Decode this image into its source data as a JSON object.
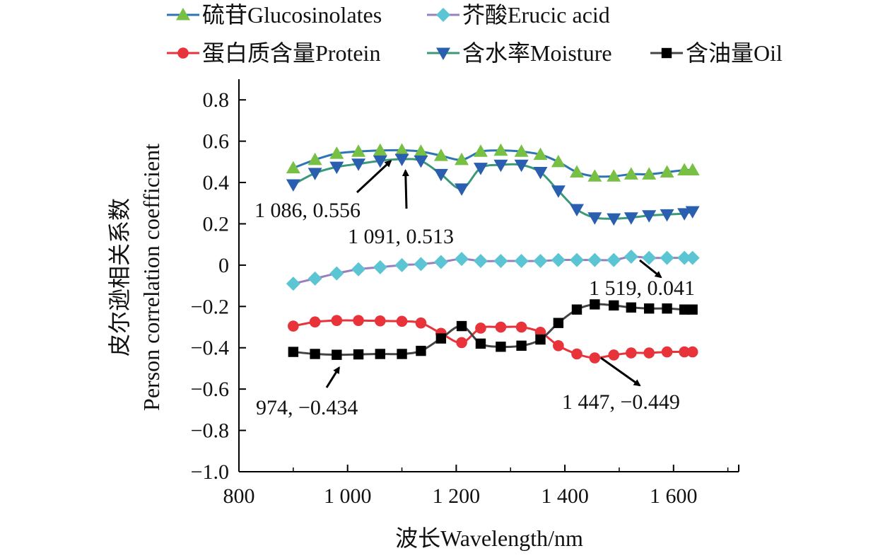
{
  "chart_data": {
    "type": "line",
    "xlabel": "波长Wavelength/nm",
    "ylabel_cn": "皮尔逊相关系数",
    "ylabel_en": "Person correlation coefficient",
    "xlim": [
      800,
      1720
    ],
    "ylim": [
      -1.0,
      0.9
    ],
    "x_ticks": [
      800,
      1000,
      1200,
      1400,
      1600
    ],
    "x_tick_labels": [
      "800",
      "1 000",
      "1 200",
      "1 400",
      "1 600"
    ],
    "y_ticks": [
      0.8,
      0.6,
      0.4,
      0.2,
      0,
      -0.2,
      -0.4,
      -0.6,
      -0.8,
      -1.0
    ],
    "y_tick_labels": [
      "0.8",
      "0.6",
      "0.4",
      "0.2",
      "0",
      "−0.2",
      "−0.4",
      "−0.6",
      "−0.8",
      "−1.0"
    ],
    "grid": false,
    "legend_position": "top",
    "x": [
      900,
      940,
      980,
      1020,
      1060,
      1100,
      1135,
      1172,
      1210,
      1245,
      1282,
      1320,
      1355,
      1388,
      1422,
      1455,
      1490,
      1522,
      1555,
      1588,
      1620,
      1635
    ],
    "series": [
      {
        "name": "硫苷Glucosinolates",
        "line_color": "#2e75b6",
        "marker_color": "#77c043",
        "marker": "triangle-up",
        "values": [
          0.47,
          0.51,
          0.54,
          0.55,
          0.555,
          0.556,
          0.55,
          0.53,
          0.51,
          0.55,
          0.555,
          0.55,
          0.535,
          0.5,
          0.45,
          0.43,
          0.43,
          0.44,
          0.44,
          0.45,
          0.46,
          0.46
        ]
      },
      {
        "name": "芥酸Erucic acid",
        "line_color": "#9a7fc0",
        "marker_color": "#5bc5d4",
        "marker": "diamond",
        "values": [
          -0.09,
          -0.065,
          -0.04,
          -0.02,
          -0.01,
          0.0,
          0.005,
          0.015,
          0.03,
          0.02,
          0.02,
          0.02,
          0.02,
          0.025,
          0.025,
          0.025,
          0.025,
          0.041,
          0.035,
          0.035,
          0.035,
          0.035
        ]
      },
      {
        "name": "蛋白质含量Protein",
        "line_color": "#e8333a",
        "marker_color": "#e8333a",
        "marker": "circle",
        "values": [
          -0.295,
          -0.275,
          -0.268,
          -0.268,
          -0.27,
          -0.272,
          -0.28,
          -0.33,
          -0.375,
          -0.305,
          -0.3,
          -0.3,
          -0.325,
          -0.39,
          -0.43,
          -0.449,
          -0.435,
          -0.425,
          -0.425,
          -0.42,
          -0.42,
          -0.42
        ]
      },
      {
        "name": "含水率Moisture",
        "line_color": "#3a9a78",
        "marker_color": "#2a5fb0",
        "marker": "triangle-down",
        "values": [
          0.39,
          0.445,
          0.475,
          0.49,
          0.505,
          0.513,
          0.505,
          0.44,
          0.37,
          0.47,
          0.485,
          0.485,
          0.45,
          0.36,
          0.27,
          0.23,
          0.225,
          0.23,
          0.24,
          0.245,
          0.25,
          0.26
        ]
      },
      {
        "name": "含油量Oil",
        "line_color": "#444444",
        "marker_color": "#000000",
        "marker": "square",
        "values": [
          -0.42,
          -0.43,
          -0.434,
          -0.432,
          -0.43,
          -0.43,
          -0.415,
          -0.355,
          -0.295,
          -0.38,
          -0.395,
          -0.39,
          -0.36,
          -0.28,
          -0.215,
          -0.19,
          -0.195,
          -0.205,
          -0.21,
          -0.21,
          -0.215,
          -0.215
        ]
      }
    ],
    "annotations": [
      {
        "text": "1 086, 0.556",
        "point": [
          1086,
          0.556
        ],
        "label_pos": [
          360,
          307
        ]
      },
      {
        "text": "1 091, 0.513",
        "point": [
          1091,
          0.513
        ],
        "label_pos": [
          492,
          344
        ]
      },
      {
        "text": "1 519, 0.041",
        "point": [
          1519,
          0.041
        ],
        "label_pos": [
          833,
          417
        ]
      },
      {
        "text": "974, −0.434",
        "point": [
          974,
          -0.434
        ],
        "label_pos": [
          362,
          586
        ]
      },
      {
        "text": "1 447, −0.449",
        "point": [
          1447,
          -0.449
        ],
        "label_pos": [
          795,
          578
        ]
      }
    ]
  }
}
